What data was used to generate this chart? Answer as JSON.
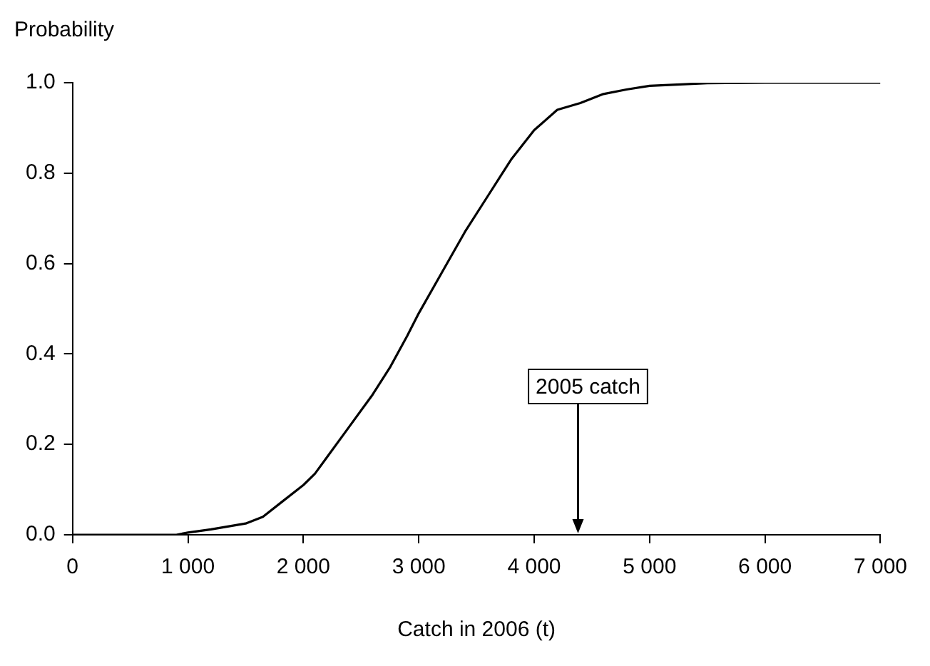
{
  "chart_data": {
    "type": "line",
    "xlabel": "Catch in 2006 (t)",
    "ylabel": "Probability",
    "x": [
      0,
      300,
      600,
      900,
      1000,
      1200,
      1500,
      1650,
      1800,
      2000,
      2100,
      2200,
      2400,
      2600,
      2750,
      2900,
      3000,
      3200,
      3400,
      3600,
      3700,
      3800,
      4000,
      4200,
      4400,
      4600,
      4800,
      5000,
      5500,
      6000,
      7000
    ],
    "series": [
      {
        "color": "#000000",
        "values": [
          0,
          0,
          0,
          0,
          0.005,
          0.012,
          0.025,
          0.04,
          0.07,
          0.11,
          0.135,
          0.17,
          0.24,
          0.31,
          0.37,
          0.44,
          0.49,
          0.58,
          0.67,
          0.75,
          0.79,
          0.83,
          0.895,
          0.94,
          0.955,
          0.975,
          0.985,
          0.993,
          0.999,
          1.0,
          1.0
        ]
      }
    ],
    "xlim": [
      0,
      7000
    ],
    "xticks": [
      0,
      {
        "value": 1000,
        "label": "1 000"
      },
      {
        "value": 2000,
        "label": "2 000"
      },
      {
        "value": 3000,
        "label": "3 000"
      },
      {
        "value": 4000,
        "label": "4 000"
      },
      {
        "value": 5000,
        "label": "5 000"
      },
      {
        "value": 6000,
        "label": "6 000"
      },
      {
        "value": 7000,
        "label": "7 000"
      }
    ],
    "ylim": [
      0,
      1
    ],
    "yticks": [
      {
        "value": 0,
        "label": "0.0"
      },
      {
        "value": 0.2,
        "label": "0.2"
      },
      {
        "value": 0.4,
        "label": "0.4"
      },
      {
        "value": 0.6,
        "label": "0.6"
      },
      {
        "value": 0.8,
        "label": "0.8"
      },
      {
        "value": 1,
        "label": "1.0"
      }
    ],
    "grid": false,
    "legend": false,
    "marker": "none",
    "line_style": "solid",
    "annotations": [
      "2005 catch"
    ]
  }
}
